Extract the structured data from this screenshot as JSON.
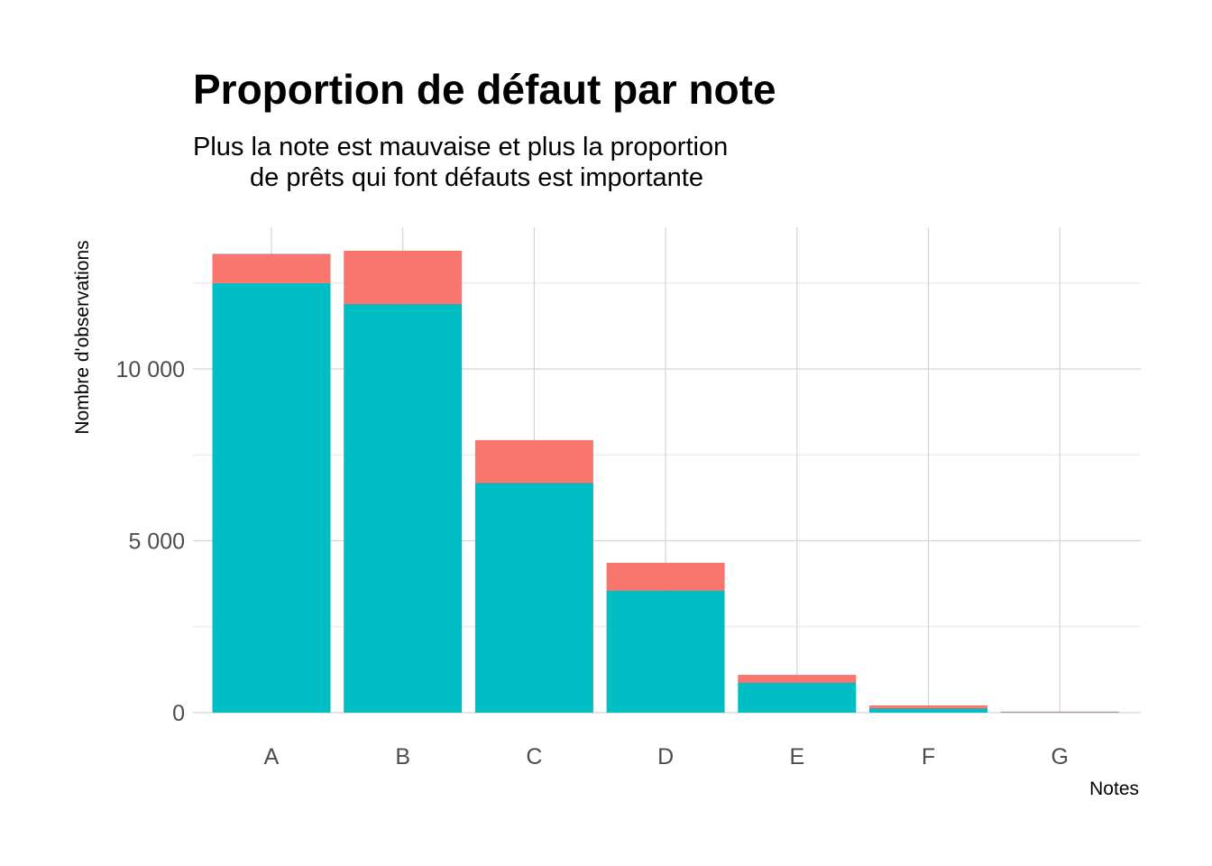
{
  "chart_data": {
    "type": "bar",
    "stacked": true,
    "title": "Proportion de défaut par note",
    "subtitle_lines": [
      "Plus la note est mauvaise et plus la proportion",
      "de prêts qui font défauts est importante"
    ],
    "xlabel": "Notes",
    "ylabel": "Nombre d'observations",
    "categories": [
      "A",
      "B",
      "C",
      "D",
      "E",
      "F",
      "G"
    ],
    "series": [
      {
        "color": "#00BFC4",
        "values": [
          12500,
          11900,
          6700,
          3560,
          880,
          140,
          20
        ]
      },
      {
        "color": "#F8766D",
        "values": [
          850,
          1540,
          1230,
          800,
          220,
          70,
          10
        ]
      }
    ],
    "ylim": [
      0,
      14000
    ],
    "yticks": [
      {
        "value": 0,
        "label": "0"
      },
      {
        "value": 5000,
        "label": "5 000"
      },
      {
        "value": 10000,
        "label": "10 000"
      }
    ],
    "minor_yticks": [
      2500,
      7500,
      12500
    ],
    "grid": true,
    "legend": "none"
  }
}
